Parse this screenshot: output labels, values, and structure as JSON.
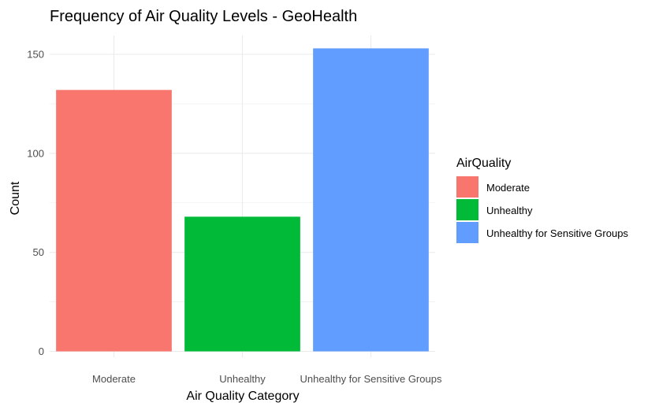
{
  "chart_data": {
    "type": "bar",
    "title": "Frequency of Air Quality Levels - GeoHealth",
    "xlabel": "Air Quality Category",
    "ylabel": "Count",
    "categories": [
      "Moderate",
      "Unhealthy",
      "Unhealthy for Sensitive Groups"
    ],
    "values": [
      132,
      68,
      153
    ],
    "ylim": [
      0,
      160
    ],
    "yticks": [
      0,
      50,
      100,
      150
    ],
    "grid": true,
    "legend": {
      "title": "AirQuality",
      "placement": "right",
      "entries": [
        "Moderate",
        "Unhealthy",
        "Unhealthy for Sensitive Groups"
      ]
    },
    "colors": [
      "#F8766D",
      "#00BA38",
      "#619CFF"
    ],
    "grid_color": "#ebebeb"
  }
}
